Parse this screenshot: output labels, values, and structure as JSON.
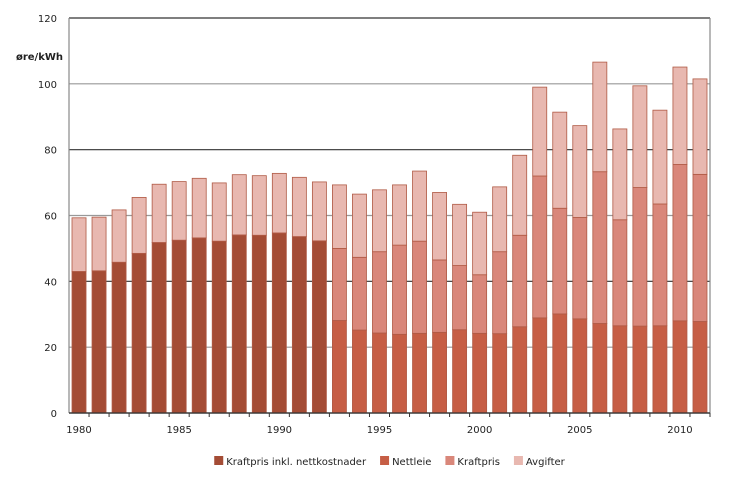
{
  "chart_data": {
    "type": "bar",
    "stacked": true,
    "ylabel": "øre/kWh",
    "ylim": [
      0,
      120
    ],
    "yticks": [
      0,
      20,
      40,
      60,
      80,
      100,
      120
    ],
    "xtick_labels": [
      "1980",
      "1985",
      "1990",
      "1995",
      "2000",
      "2005",
      "2010"
    ],
    "grid": true,
    "legend_position": "bottom",
    "categories": [
      1980,
      1981,
      1982,
      1983,
      1984,
      1985,
      1986,
      1987,
      1988,
      1989,
      1990,
      1991,
      1992,
      1993,
      1994,
      1995,
      1996,
      1997,
      1998,
      1999,
      2000,
      2001,
      2002,
      2003,
      2004,
      2005,
      2006,
      2007,
      2008,
      2009,
      2010,
      2011
    ],
    "series": [
      {
        "name": "Kraftpris inkl. nettkostnader",
        "color": "#a44c35",
        "values": [
          43.0,
          43.2,
          45.8,
          48.5,
          51.8,
          52.5,
          53.2,
          52.2,
          54.1,
          54.0,
          54.7,
          53.6,
          52.3,
          0,
          0,
          0,
          0,
          0,
          0,
          0,
          0,
          0,
          0,
          0,
          0,
          0,
          0,
          0,
          0,
          0,
          0,
          0
        ]
      },
      {
        "name": "Nettleie",
        "color": "#c65e45",
        "values": [
          0,
          0,
          0,
          0,
          0,
          0,
          0,
          0,
          0,
          0,
          0,
          0,
          0,
          28.1,
          25.2,
          24.3,
          23.9,
          24.2,
          24.5,
          25.3,
          24.2,
          24.1,
          26.2,
          28.9,
          30.1,
          28.6,
          27.2,
          26.5,
          26.4,
          26.5,
          28.0,
          27.8
        ]
      },
      {
        "name": "Kraftpris",
        "color": "#d9877a",
        "values": [
          0,
          0,
          0,
          0,
          0,
          0,
          0,
          0,
          0,
          0,
          0,
          0,
          0,
          21.9,
          22.1,
          24.7,
          27.1,
          28.0,
          22.0,
          19.5,
          17.8,
          24.9,
          27.8,
          43.1,
          32.1,
          30.8,
          46.1,
          32.2,
          42.1,
          37.0,
          47.5,
          44.7
        ]
      },
      {
        "name": "Avgifter",
        "color": "#e8b8b0",
        "values": [
          16.3,
          16.3,
          15.9,
          17.0,
          17.7,
          17.8,
          18.1,
          17.7,
          18.3,
          18.1,
          18.1,
          18.0,
          17.9,
          19.3,
          19.2,
          18.8,
          18.3,
          21.3,
          20.5,
          18.6,
          19.0,
          19.7,
          24.3,
          27.0,
          29.2,
          27.9,
          33.3,
          27.6,
          30.9,
          28.5,
          29.6,
          29.0
        ]
      }
    ]
  }
}
